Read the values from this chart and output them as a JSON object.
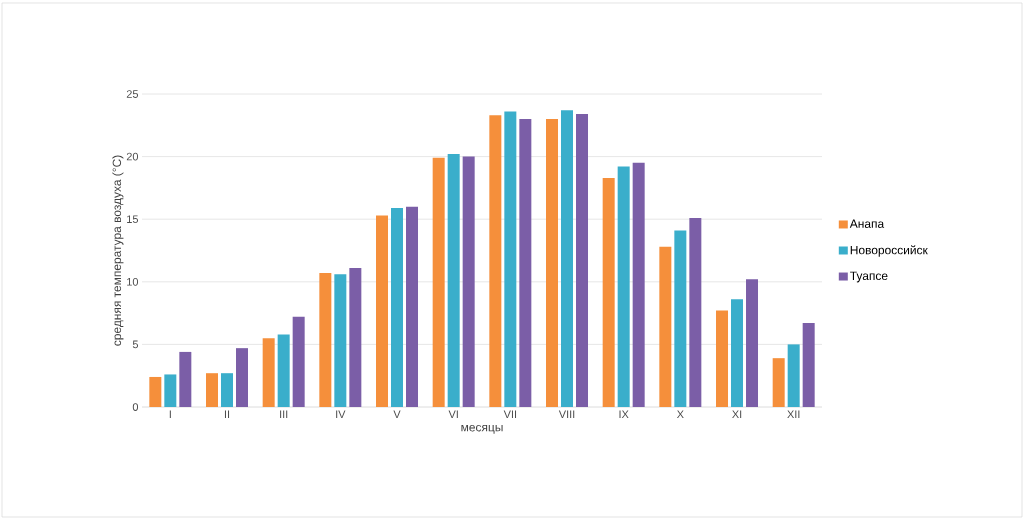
{
  "chart_data": {
    "type": "bar",
    "xlabel": "месяцы",
    "ylabel": "средняя температура воздуха (°C)",
    "categories": [
      "I",
      "II",
      "III",
      "IV",
      "V",
      "VI",
      "VII",
      "VIII",
      "IX",
      "X",
      "XI",
      "XII"
    ],
    "series": [
      {
        "name": "Анапа",
        "color": "#f58f3b",
        "values": [
          2.4,
          2.7,
          5.5,
          10.7,
          15.3,
          19.9,
          23.3,
          23.0,
          18.3,
          12.8,
          7.7,
          3.9
        ]
      },
      {
        "name": "Новороссийск",
        "color": "#3aaecb",
        "values": [
          2.6,
          2.7,
          5.8,
          10.6,
          15.9,
          20.2,
          23.6,
          23.7,
          19.2,
          14.1,
          8.6,
          5.0
        ]
      },
      {
        "name": "Туапсе",
        "color": "#7b5ea7",
        "values": [
          4.4,
          4.7,
          7.2,
          11.1,
          16.0,
          20.0,
          23.0,
          23.4,
          19.5,
          15.1,
          10.2,
          6.7
        ]
      }
    ],
    "ylim": [
      0,
      25
    ],
    "yticks": [
      0,
      5,
      10,
      15,
      20,
      25
    ],
    "grid": "y",
    "legend": "right"
  }
}
